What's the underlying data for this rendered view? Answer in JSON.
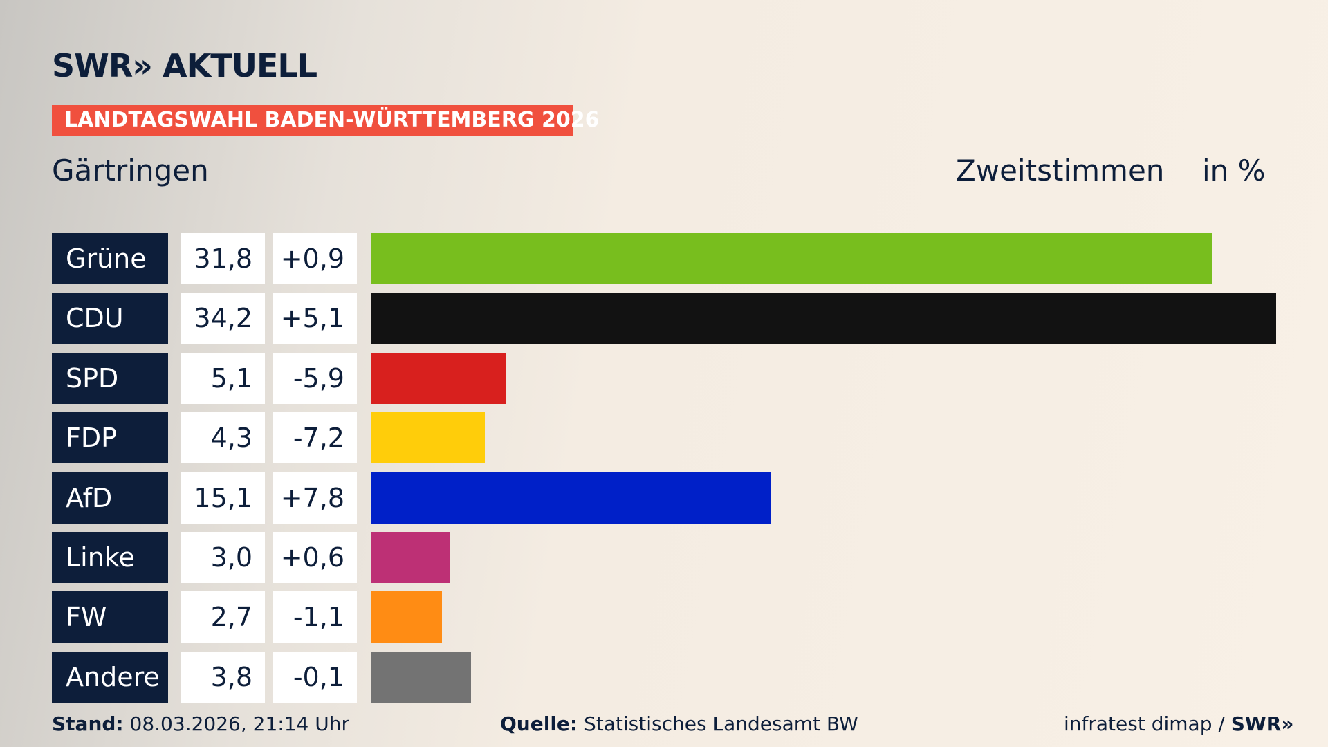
{
  "header": {
    "logo": "SWR» AKTUELL",
    "banner": "LANDTAGSWAHL BADEN-WÜRTTEMBERG 2026",
    "place": "Gärtringen",
    "metric": "Zweitstimmen",
    "unit": "in %"
  },
  "chart_data": {
    "type": "bar",
    "orientation": "horizontal",
    "xlim": [
      0,
      34.2
    ],
    "grid": false,
    "categories": [
      "Grüne",
      "CDU",
      "SPD",
      "FDP",
      "AfD",
      "Linke",
      "FW",
      "Andere"
    ],
    "values": [
      31.8,
      34.2,
      5.1,
      4.3,
      15.1,
      3.0,
      2.7,
      3.8
    ],
    "value_labels": [
      "31,8",
      "34,2",
      "5,1",
      "4,3",
      "15,1",
      "3,0",
      "2,7",
      "3,8"
    ],
    "diff_labels": [
      "+0,9",
      "+5,1",
      "-5,9",
      "-7,2",
      "+7,8",
      "+0,6",
      "-1,1",
      "-0,1"
    ],
    "colors": [
      "#78be1e",
      "#121212",
      "#d8201e",
      "#ffcd0a",
      "#0020c8",
      "#bd3075",
      "#ff8c14",
      "#737373"
    ]
  },
  "footer": {
    "stand_label": "Stand:",
    "stand": "08.03.2026, 21:14 Uhr",
    "quelle_label": "Quelle:",
    "quelle": "Statistisches Landesamt BW",
    "credit": "infratest dimap / ",
    "credit_logo": "SWR»"
  }
}
